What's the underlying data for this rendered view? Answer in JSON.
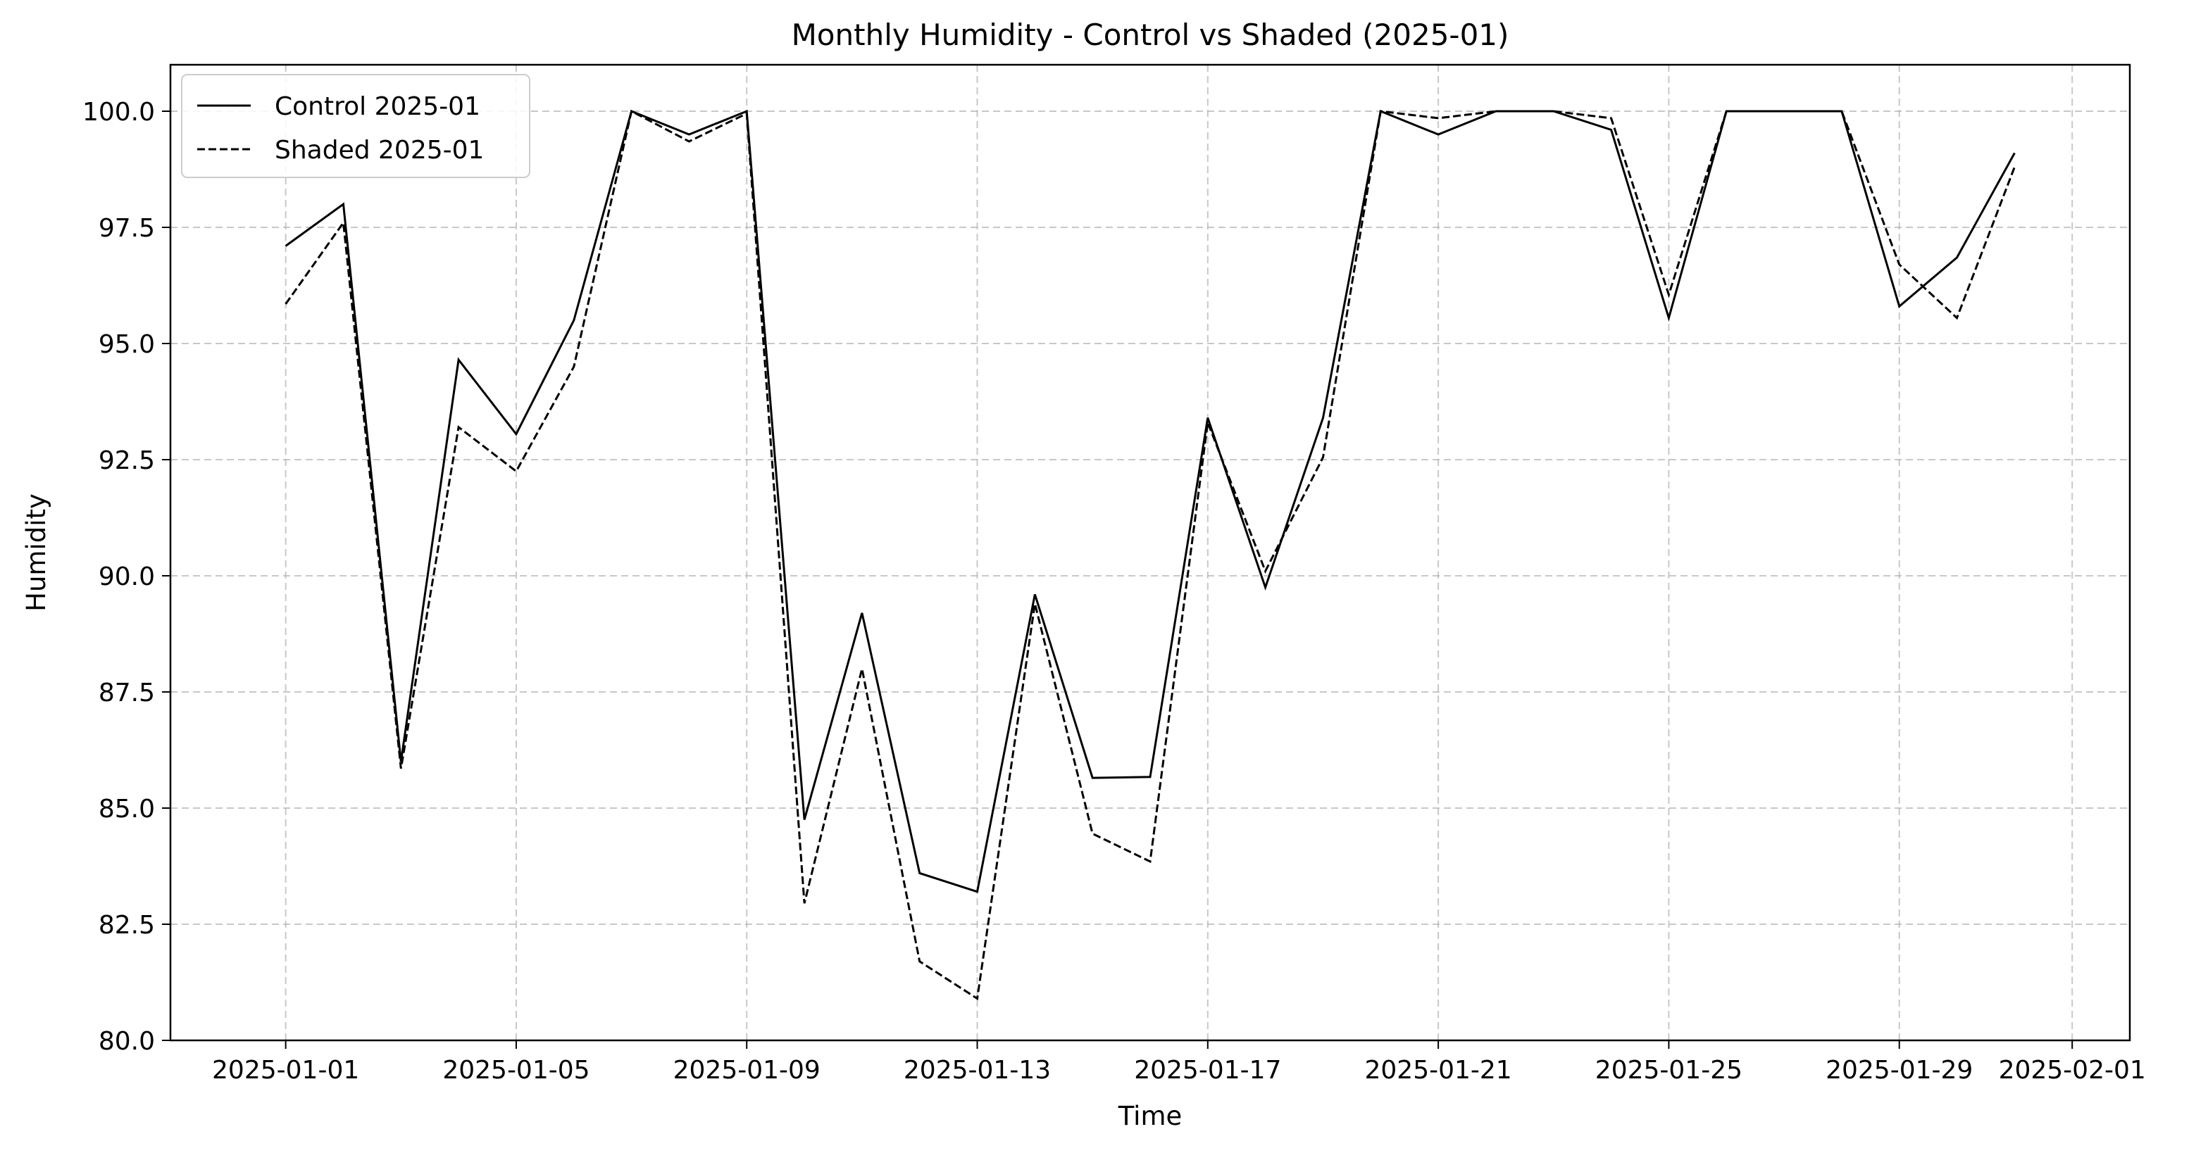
{
  "chart_data": {
    "type": "line",
    "title": "Monthly Humidity - Control vs Shaded (2025-01)",
    "xlabel": "Time",
    "ylabel": "Humidity",
    "x": [
      "2025-01-01",
      "2025-01-02",
      "2025-01-03",
      "2025-01-04",
      "2025-01-05",
      "2025-01-06",
      "2025-01-07",
      "2025-01-08",
      "2025-01-09",
      "2025-01-10",
      "2025-01-11",
      "2025-01-12",
      "2025-01-13",
      "2025-01-14",
      "2025-01-15",
      "2025-01-16",
      "2025-01-17",
      "2025-01-18",
      "2025-01-19",
      "2025-01-20",
      "2025-01-21",
      "2025-01-22",
      "2025-01-23",
      "2025-01-24",
      "2025-01-25",
      "2025-01-26",
      "2025-01-27",
      "2025-01-28",
      "2025-01-29",
      "2025-01-30",
      "2025-01-31"
    ],
    "series": [
      {
        "name": "Control 2025-01",
        "style": "solid",
        "color": "#000000",
        "values": [
          97.1,
          98.0,
          86.0,
          94.65,
          93.05,
          95.5,
          100.0,
          99.5,
          100.0,
          84.75,
          89.2,
          83.6,
          83.2,
          89.6,
          85.65,
          85.67,
          93.4,
          89.75,
          93.4,
          100.0,
          99.5,
          100.0,
          100.0,
          99.6,
          95.55,
          100.0,
          100.0,
          100.0,
          95.8,
          96.85,
          99.1
        ]
      },
      {
        "name": "Shaded 2025-01",
        "style": "dashed",
        "color": "#000000",
        "values": [
          95.85,
          97.6,
          85.85,
          93.2,
          92.25,
          94.5,
          100.0,
          99.35,
          99.95,
          82.95,
          88.0,
          81.7,
          80.9,
          89.4,
          84.45,
          83.85,
          93.3,
          90.1,
          92.55,
          100.0,
          99.85,
          100.0,
          100.0,
          99.85,
          96.05,
          100.0,
          100.0,
          100.0,
          96.7,
          95.55,
          98.8
        ]
      }
    ],
    "xticks": [
      "2025-01-01",
      "2025-01-05",
      "2025-01-09",
      "2025-01-13",
      "2025-01-17",
      "2025-01-21",
      "2025-01-25",
      "2025-01-29",
      "2025-02-01"
    ],
    "xlim": [
      "2024-12-30",
      "2025-02-02"
    ],
    "ylim": [
      80.0,
      101.0
    ],
    "yticks": [
      "80.0",
      "82.5",
      "85.0",
      "87.5",
      "90.0",
      "92.5",
      "95.0",
      "97.5",
      "100.0"
    ],
    "grid": true,
    "legend_position": "top-left"
  }
}
